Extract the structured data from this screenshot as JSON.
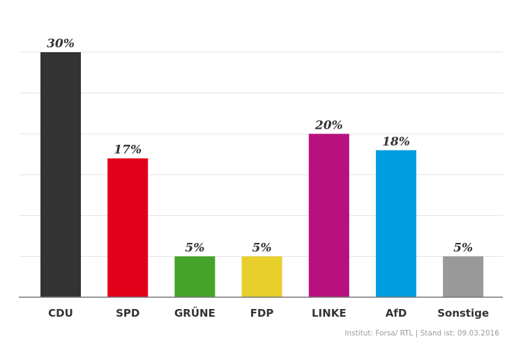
{
  "chart_data": {
    "type": "bar",
    "categories": [
      "CDU",
      "SPD",
      "GRÜNE",
      "FDP",
      "LINKE",
      "AfD",
      "Sonstige"
    ],
    "values": [
      30,
      17,
      5,
      5,
      20,
      18,
      5
    ],
    "data_labels": [
      "30%",
      "17%",
      "5%",
      "5%",
      "20%",
      "18%",
      "5%"
    ],
    "colors": [
      "#333333",
      "#e2001a",
      "#46a32a",
      "#e8cf2b",
      "#b8117f",
      "#009ee0",
      "#999999"
    ],
    "title": "",
    "xlabel": "",
    "ylabel": "",
    "ylim": [
      0,
      30
    ],
    "grid_step": 5,
    "grid": true,
    "legend": "none"
  },
  "footer": {
    "source": "Institut: Forsa/ RTL | Stand ist: 09.03.2016"
  }
}
